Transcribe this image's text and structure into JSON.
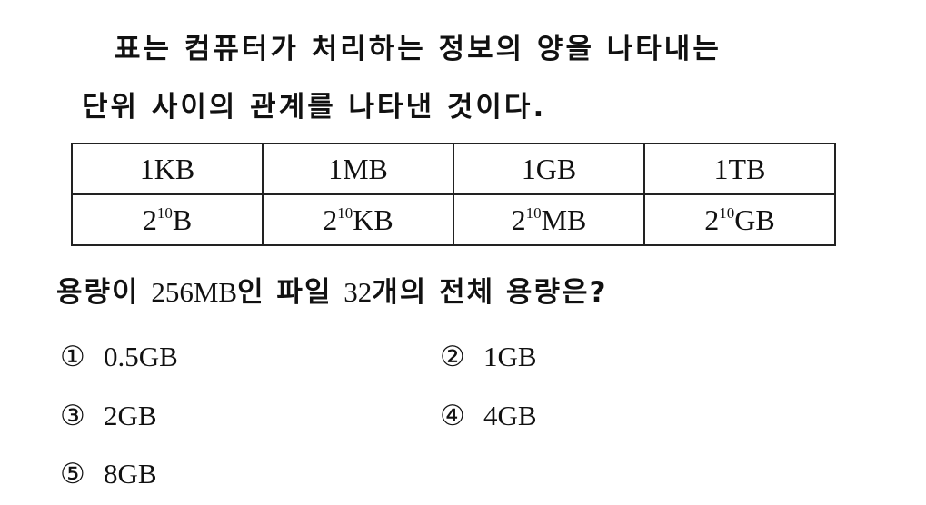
{
  "intro": {
    "line1": "표는 컴퓨터가 처리하는 정보의 양을 나타내는",
    "line2": "단위 사이의 관계를 나타낸 것이다."
  },
  "table": {
    "top_row": [
      "1KB",
      "1MB",
      "1GB",
      "1TB"
    ],
    "bottom_row": [
      {
        "base": "2",
        "exponent": "10",
        "unit": "B"
      },
      {
        "base": "2",
        "exponent": "10",
        "unit": "KB"
      },
      {
        "base": "2",
        "exponent": "10",
        "unit": "MB"
      },
      {
        "base": "2",
        "exponent": "10",
        "unit": "GB"
      }
    ]
  },
  "question": {
    "part1": "용량이",
    "size": "256MB",
    "part2": "인 파일",
    "count": "32",
    "part3": "개의 전체 용량은?"
  },
  "choices": [
    {
      "marker": "①",
      "value": "0.5GB"
    },
    {
      "marker": "②",
      "value": "1GB"
    },
    {
      "marker": "③",
      "value": "2GB"
    },
    {
      "marker": "④",
      "value": "4GB"
    },
    {
      "marker": "⑤",
      "value": "8GB"
    }
  ]
}
